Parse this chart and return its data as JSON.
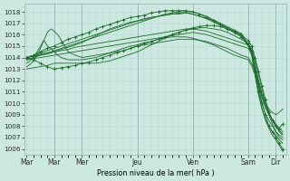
{
  "background_color": "#cce8e0",
  "grid_color": "#b8d8d0",
  "line_color": "#1a6b2a",
  "xlabel": "Pression niveau de la mer( hPa )",
  "ylim": [
    1005.5,
    1018.7
  ],
  "yticks": [
    1006,
    1007,
    1008,
    1009,
    1010,
    1011,
    1012,
    1013,
    1014,
    1015,
    1016,
    1017,
    1018
  ],
  "xtick_labels": [
    "Mar",
    "Mar",
    "Mer",
    "Jeu",
    "Ven",
    "Sam",
    "Dir"
  ],
  "xtick_positions": [
    0,
    24,
    48,
    96,
    144,
    192,
    216
  ],
  "day_lines": [
    24,
    48,
    96,
    144,
    192,
    216
  ],
  "xlim": [
    -2,
    225
  ],
  "series": [
    {
      "x": [
        0,
        6,
        12,
        18,
        24,
        30,
        36,
        42,
        48,
        54,
        60,
        66,
        72,
        78,
        84,
        90,
        96,
        102,
        108,
        114,
        120,
        126,
        132,
        138,
        144,
        150,
        156,
        162,
        168,
        174,
        180,
        186,
        192,
        195,
        198,
        201,
        204,
        207,
        210,
        213,
        216,
        219,
        222
      ],
      "y": [
        1014.0,
        1014.1,
        1014.3,
        1014.4,
        1014.5,
        1014.7,
        1014.9,
        1015.1,
        1015.3,
        1015.6,
        1015.9,
        1016.2,
        1016.5,
        1016.7,
        1016.9,
        1017.1,
        1017.2,
        1017.4,
        1017.5,
        1017.6,
        1017.7,
        1017.8,
        1017.8,
        1017.9,
        1017.8,
        1017.6,
        1017.4,
        1017.2,
        1016.9,
        1016.6,
        1016.3,
        1016.0,
        1015.2,
        1014.5,
        1013.0,
        1011.5,
        1010.0,
        1009.0,
        1008.5,
        1008.0,
        1007.5,
        1007.2,
        1007.0
      ],
      "marker": false
    },
    {
      "x": [
        0,
        6,
        12,
        18,
        24,
        30,
        36,
        42,
        48,
        54,
        60,
        66,
        72,
        78,
        84,
        90,
        96,
        102,
        108,
        114,
        120,
        126,
        132,
        138,
        144,
        150,
        156,
        162,
        168,
        174,
        180,
        186,
        192,
        195,
        198,
        201,
        204,
        207,
        210,
        213,
        216,
        219,
        222
      ],
      "y": [
        1014.0,
        1014.2,
        1014.5,
        1014.8,
        1015.0,
        1015.3,
        1015.6,
        1015.8,
        1016.0,
        1016.2,
        1016.5,
        1016.7,
        1016.9,
        1017.1,
        1017.3,
        1017.5,
        1017.6,
        1017.7,
        1017.9,
        1018.0,
        1018.1,
        1018.1,
        1018.1,
        1018.1,
        1018.0,
        1017.8,
        1017.5,
        1017.2,
        1016.9,
        1016.5,
        1016.2,
        1015.8,
        1015.2,
        1014.5,
        1012.8,
        1011.0,
        1010.0,
        1009.0,
        1008.0,
        1007.5,
        1007.0,
        1006.5,
        1006.0
      ],
      "marker": true
    },
    {
      "x": [
        0,
        6,
        12,
        18,
        24,
        30,
        36,
        42,
        48,
        54,
        60,
        66,
        72,
        78,
        84,
        90,
        96,
        102,
        108,
        114,
        120,
        126,
        132,
        138,
        144,
        150,
        156,
        162,
        168,
        174,
        180,
        186,
        192,
        195,
        198,
        201,
        204,
        207,
        210,
        213,
        216,
        219,
        222
      ],
      "y": [
        1013.8,
        1014.0,
        1014.2,
        1014.4,
        1014.6,
        1014.8,
        1015.0,
        1015.2,
        1015.4,
        1015.6,
        1015.8,
        1016.0,
        1016.2,
        1016.4,
        1016.6,
        1016.8,
        1017.0,
        1017.2,
        1017.4,
        1017.6,
        1017.8,
        1017.9,
        1018.0,
        1018.0,
        1018.0,
        1017.8,
        1017.6,
        1017.3,
        1017.0,
        1016.7,
        1016.4,
        1016.1,
        1015.1,
        1014.4,
        1012.5,
        1010.8,
        1009.5,
        1008.5,
        1007.8,
        1007.2,
        1006.8,
        1006.3,
        1005.8
      ],
      "marker": false
    },
    {
      "x": [
        0,
        6,
        12,
        18,
        24,
        30,
        36,
        42,
        48,
        54,
        60,
        66,
        72,
        78,
        84,
        90,
        96,
        102,
        108,
        114,
        120,
        126,
        132,
        138,
        144,
        150,
        156,
        162,
        168,
        174,
        180,
        186,
        192,
        195,
        198,
        201,
        204,
        207,
        210,
        213,
        216,
        219,
        222
      ],
      "y": [
        1014.0,
        1014.2,
        1014.4,
        1014.6,
        1014.8,
        1015.0,
        1015.2,
        1015.4,
        1015.6,
        1015.8,
        1016.0,
        1016.2,
        1016.4,
        1016.6,
        1016.8,
        1017.0,
        1017.2,
        1017.3,
        1017.5,
        1017.6,
        1017.7,
        1017.8,
        1017.9,
        1017.9,
        1017.8,
        1017.6,
        1017.4,
        1017.1,
        1016.8,
        1016.5,
        1016.2,
        1015.9,
        1015.0,
        1014.2,
        1012.5,
        1010.8,
        1009.5,
        1008.6,
        1008.0,
        1007.5,
        1007.2,
        1006.8,
        1006.5
      ],
      "marker": false
    },
    {
      "x": [
        0,
        6,
        12,
        18,
        24,
        30,
        36,
        42,
        48,
        54,
        60,
        66,
        72,
        78,
        84,
        90,
        96,
        102,
        108,
        114,
        120,
        126,
        132,
        138,
        144,
        150,
        156,
        162,
        168,
        174,
        180,
        186,
        192,
        195,
        198,
        201,
        204,
        207,
        210,
        213,
        216,
        219,
        222
      ],
      "y": [
        1014.0,
        1014.1,
        1014.2,
        1014.3,
        1014.5,
        1014.6,
        1014.7,
        1014.9,
        1015.0,
        1015.1,
        1015.2,
        1015.3,
        1015.4,
        1015.5,
        1015.6,
        1015.7,
        1015.8,
        1015.9,
        1016.0,
        1016.1,
        1016.2,
        1016.3,
        1016.4,
        1016.5,
        1016.5,
        1016.4,
        1016.3,
        1016.1,
        1015.9,
        1015.7,
        1015.5,
        1015.3,
        1015.1,
        1014.7,
        1013.5,
        1012.0,
        1010.8,
        1010.0,
        1009.5,
        1009.2,
        1009.0,
        1009.2,
        1009.5
      ],
      "marker": false
    },
    {
      "x": [
        0,
        6,
        12,
        18,
        24,
        30,
        36,
        42,
        48,
        54,
        60,
        66,
        72,
        78,
        84,
        90,
        96,
        102,
        108,
        114,
        120,
        126,
        132,
        138,
        144,
        150,
        156,
        162,
        168,
        174,
        180,
        186,
        192,
        195,
        198,
        201,
        204,
        207,
        210,
        213,
        216,
        219,
        222
      ],
      "y": [
        1013.8,
        1013.9,
        1014.0,
        1014.1,
        1014.2,
        1014.3,
        1014.4,
        1014.5,
        1014.6,
        1014.7,
        1014.8,
        1014.9,
        1015.0,
        1015.1,
        1015.2,
        1015.3,
        1015.4,
        1015.5,
        1015.6,
        1015.7,
        1015.8,
        1015.9,
        1016.0,
        1016.1,
        1016.2,
        1016.1,
        1016.0,
        1015.8,
        1015.6,
        1015.4,
        1015.2,
        1015.0,
        1014.8,
        1014.4,
        1013.2,
        1011.8,
        1010.5,
        1009.6,
        1009.0,
        1008.6,
        1008.2,
        1007.8,
        1007.5
      ],
      "marker": false
    },
    {
      "x": [
        0,
        3,
        6,
        9,
        12,
        15,
        18,
        21,
        24,
        27,
        30,
        33,
        36,
        42,
        48,
        54,
        60,
        66,
        72,
        78,
        84,
        90,
        96,
        102,
        108,
        114,
        120,
        126,
        132,
        138,
        144,
        150,
        156,
        162,
        168,
        174,
        180,
        186,
        192,
        195,
        198,
        201,
        204,
        207,
        210,
        213,
        216,
        219,
        222
      ],
      "y": [
        1013.5,
        1013.7,
        1014.0,
        1014.5,
        1015.0,
        1015.5,
        1015.0,
        1014.8,
        1014.5,
        1014.2,
        1014.0,
        1013.9,
        1013.8,
        1013.8,
        1013.8,
        1013.9,
        1014.0,
        1014.2,
        1014.4,
        1014.6,
        1014.8,
        1015.0,
        1015.1,
        1015.3,
        1015.4,
        1015.6,
        1015.7,
        1015.8,
        1015.8,
        1015.8,
        1015.7,
        1015.5,
        1015.3,
        1015.1,
        1014.8,
        1014.5,
        1014.2,
        1014.0,
        1013.8,
        1013.3,
        1012.5,
        1011.5,
        1010.5,
        1009.7,
        1009.0,
        1008.5,
        1008.0,
        1007.6,
        1007.3
      ],
      "marker": false
    },
    {
      "x": [
        0,
        3,
        6,
        9,
        12,
        15,
        18,
        21,
        24,
        27,
        30,
        33,
        36,
        42,
        48,
        54,
        60,
        66,
        72,
        78,
        84,
        90,
        96,
        102,
        108,
        114,
        120,
        126,
        132,
        138,
        144,
        150,
        156,
        162,
        168,
        174,
        180,
        186,
        192,
        195,
        198,
        201,
        204,
        207,
        210,
        213,
        216,
        219,
        222
      ],
      "y": [
        1013.2,
        1013.4,
        1013.7,
        1014.2,
        1014.8,
        1015.5,
        1016.2,
        1016.5,
        1016.3,
        1016.0,
        1015.5,
        1015.0,
        1014.5,
        1014.2,
        1014.0,
        1014.1,
        1014.2,
        1014.3,
        1014.4,
        1014.5,
        1014.6,
        1014.8,
        1015.0,
        1015.1,
        1015.2,
        1015.3,
        1015.4,
        1015.5,
        1015.6,
        1015.6,
        1015.6,
        1015.5,
        1015.4,
        1015.2,
        1015.0,
        1014.8,
        1014.5,
        1014.2,
        1014.0,
        1013.5,
        1012.8,
        1011.8,
        1010.8,
        1010.0,
        1009.2,
        1008.5,
        1008.0,
        1007.5,
        1007.2
      ],
      "marker": false
    },
    {
      "x": [
        0,
        6,
        12,
        18,
        24,
        30,
        36,
        42,
        48,
        54,
        60,
        66,
        72,
        78,
        84,
        90,
        96,
        102,
        108,
        114,
        120,
        126,
        132,
        138,
        144,
        150,
        156,
        162,
        168,
        174,
        180,
        186,
        192,
        195,
        198,
        201,
        204,
        207,
        210,
        213,
        216,
        219,
        222
      ],
      "y": [
        1014.0,
        1013.8,
        1013.5,
        1013.2,
        1013.0,
        1013.1,
        1013.2,
        1013.3,
        1013.5,
        1013.6,
        1013.8,
        1014.0,
        1014.2,
        1014.4,
        1014.6,
        1014.8,
        1015.0,
        1015.2,
        1015.4,
        1015.6,
        1015.8,
        1016.0,
        1016.2,
        1016.4,
        1016.6,
        1016.7,
        1016.8,
        1016.8,
        1016.7,
        1016.5,
        1016.3,
        1016.0,
        1015.5,
        1015.0,
        1014.0,
        1012.8,
        1011.5,
        1010.3,
        1009.2,
        1008.5,
        1008.0,
        1007.8,
        1008.2
      ],
      "marker": true
    },
    {
      "x": [
        0,
        6,
        12,
        18,
        24,
        30,
        36,
        42,
        48,
        54,
        60,
        66,
        72,
        78,
        84,
        90,
        96,
        102,
        108,
        114,
        120,
        126,
        132,
        138,
        144,
        150,
        156,
        162,
        168,
        174,
        180,
        186,
        192,
        195,
        198,
        201,
        204,
        207,
        210,
        213,
        216,
        219,
        222
      ],
      "y": [
        1013.0,
        1013.1,
        1013.2,
        1013.3,
        1013.5,
        1013.5,
        1013.5,
        1013.5,
        1013.5,
        1013.5,
        1013.5,
        1013.6,
        1013.7,
        1013.9,
        1014.1,
        1014.3,
        1014.5,
        1014.8,
        1015.1,
        1015.4,
        1015.7,
        1016.0,
        1016.2,
        1016.4,
        1016.5,
        1016.6,
        1016.6,
        1016.5,
        1016.4,
        1016.2,
        1015.9,
        1015.6,
        1015.2,
        1014.8,
        1013.8,
        1012.5,
        1011.2,
        1010.0,
        1009.0,
        1008.2,
        1007.5,
        1007.0,
        1006.8
      ],
      "marker": false
    }
  ]
}
